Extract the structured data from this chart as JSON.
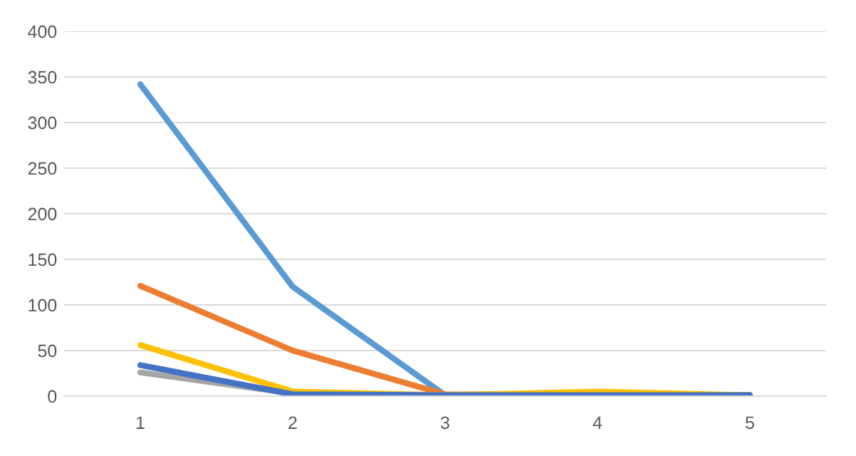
{
  "chart_data": {
    "type": "line",
    "categories": [
      "1",
      "2",
      "3",
      "4",
      "5"
    ],
    "series": [
      {
        "color": "#5b9bd5",
        "values": [
          342,
          120,
          1,
          1,
          1
        ]
      },
      {
        "color": "#ed7d31",
        "values": [
          121,
          50,
          2,
          1,
          1
        ]
      },
      {
        "color": "#a5a5a5",
        "values": [
          26,
          3,
          null,
          null,
          null
        ]
      },
      {
        "color": "#ffc000",
        "values": [
          56,
          5,
          1,
          5,
          1
        ]
      },
      {
        "color": "#4472c4",
        "values": [
          34,
          2,
          1,
          1,
          1
        ]
      }
    ],
    "ylim": [
      0,
      400
    ],
    "yticks": [
      0,
      50,
      100,
      150,
      200,
      250,
      300,
      350,
      400
    ],
    "grid": "y",
    "legend": false,
    "marker": "none",
    "line_style": "solid"
  }
}
